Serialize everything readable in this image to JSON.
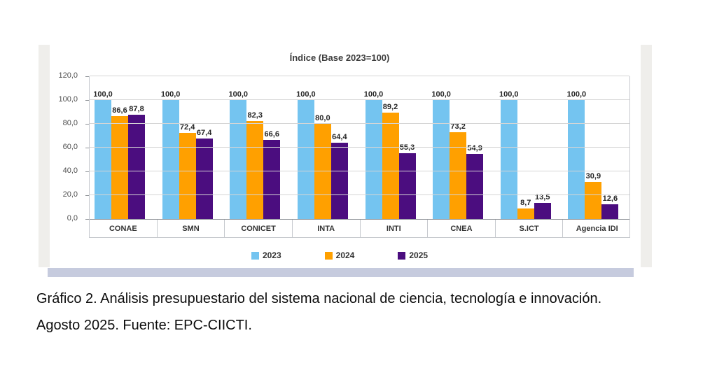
{
  "page": {
    "caption": "Gráfico 2. Análisis presupuestario del sistema nacional de ciencia, tecnología e innovación. Agosto 2025. Fuente: EPC-CIICTI."
  },
  "chart_data": {
    "type": "bar",
    "title": "Índice (Base 2023=100)",
    "categories": [
      "CONAE",
      "SMN",
      "CONICET",
      "INTA",
      "INTI",
      "CNEA",
      "S.ICT",
      "Agencia IDI"
    ],
    "series": [
      {
        "name": "2023",
        "color": "#74c4f0",
        "values": [
          100.0,
          100.0,
          100.0,
          100.0,
          100.0,
          100.0,
          100.0,
          100.0
        ]
      },
      {
        "name": "2024",
        "color": "#ffa000",
        "values": [
          86.6,
          72.4,
          82.3,
          80.0,
          89.2,
          73.2,
          8.7,
          30.9
        ]
      },
      {
        "name": "2025",
        "color": "#4b0d7f",
        "values": [
          87.8,
          67.4,
          66.6,
          64.4,
          55.3,
          54.9,
          13.5,
          12.6
        ]
      }
    ],
    "ylabel": "",
    "xlabel": "",
    "ylim": [
      0,
      120
    ],
    "ytick_step": 20,
    "ytick_labels": [
      "0,0",
      "20,0",
      "40,0",
      "60,0",
      "80,0",
      "100,0",
      "120,0"
    ],
    "grid": true,
    "legend_position": "bottom",
    "decimal_separator": ",",
    "value_labels_shown": true
  }
}
